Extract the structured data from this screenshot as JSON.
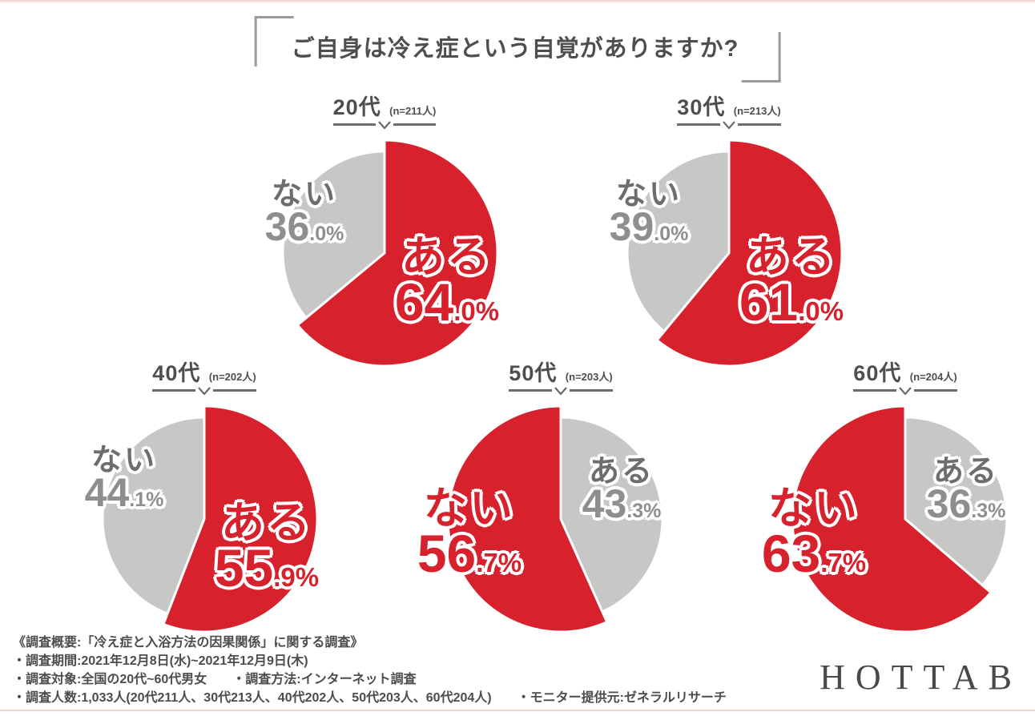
{
  "title": "ご自身は冷え症という自覚がありますか?",
  "colors": {
    "red": "#d7222d",
    "gray": "#c7c7c6",
    "dark_text": "#4f4d4d",
    "minor_name": "#6e6d6d",
    "minor_pct": "#8f8e8e",
    "bracket": "#9a9a9a",
    "footer_text": "#4d4b4b",
    "logo_text": "#4a4848",
    "edge_line": "#f3cfcf"
  },
  "chart_data": [
    {
      "type": "pie",
      "title": "20代",
      "n": 211,
      "n_label": "(n=211人)",
      "categories": [
        "ある",
        "ない"
      ],
      "values": [
        64.0,
        36.0
      ],
      "colors": [
        "#d7222d",
        "#c7c7c6"
      ],
      "start_angle_deg": 0,
      "direction": "clockwise"
    },
    {
      "type": "pie",
      "title": "30代",
      "n": 213,
      "n_label": "(n=213人)",
      "categories": [
        "ある",
        "ない"
      ],
      "values": [
        61.0,
        39.0
      ],
      "colors": [
        "#d7222d",
        "#c7c7c6"
      ],
      "start_angle_deg": 0,
      "direction": "clockwise"
    },
    {
      "type": "pie",
      "title": "40代",
      "n": 202,
      "n_label": "(n=202人)",
      "categories": [
        "ある",
        "ない"
      ],
      "values": [
        55.9,
        44.1
      ],
      "colors": [
        "#d7222d",
        "#c7c7c6"
      ],
      "start_angle_deg": 0,
      "direction": "clockwise"
    },
    {
      "type": "pie",
      "title": "50代",
      "n": 203,
      "n_label": "(n=203人)",
      "categories": [
        "ある",
        "ない"
      ],
      "values": [
        43.3,
        56.7
      ],
      "colors": [
        "#c7c7c6",
        "#d7222d"
      ],
      "start_angle_deg": 0,
      "direction": "clockwise"
    },
    {
      "type": "pie",
      "title": "60代",
      "n": 204,
      "n_label": "(n=204人)",
      "categories": [
        "ある",
        "ない"
      ],
      "values": [
        36.3,
        63.7
      ],
      "colors": [
        "#c7c7c6",
        "#d7222d"
      ],
      "start_angle_deg": 0,
      "direction": "clockwise"
    }
  ],
  "footer": {
    "lines": [
      "《調査概要:「冷え症と入浴方法の因果関係」に関する調査》",
      "・調査期間:2021年12月8日(水)~2021年12月9日(木)",
      "・調査対象:全国の20代~60代男女　　・調査方法:インターネット調査",
      "・調査人数:1,033人(20代211人、30代213人、40代202人、50代203人、60代204人)　　・モニター提供元:ゼネラルリサーチ"
    ]
  },
  "logo": "HOTTAB"
}
